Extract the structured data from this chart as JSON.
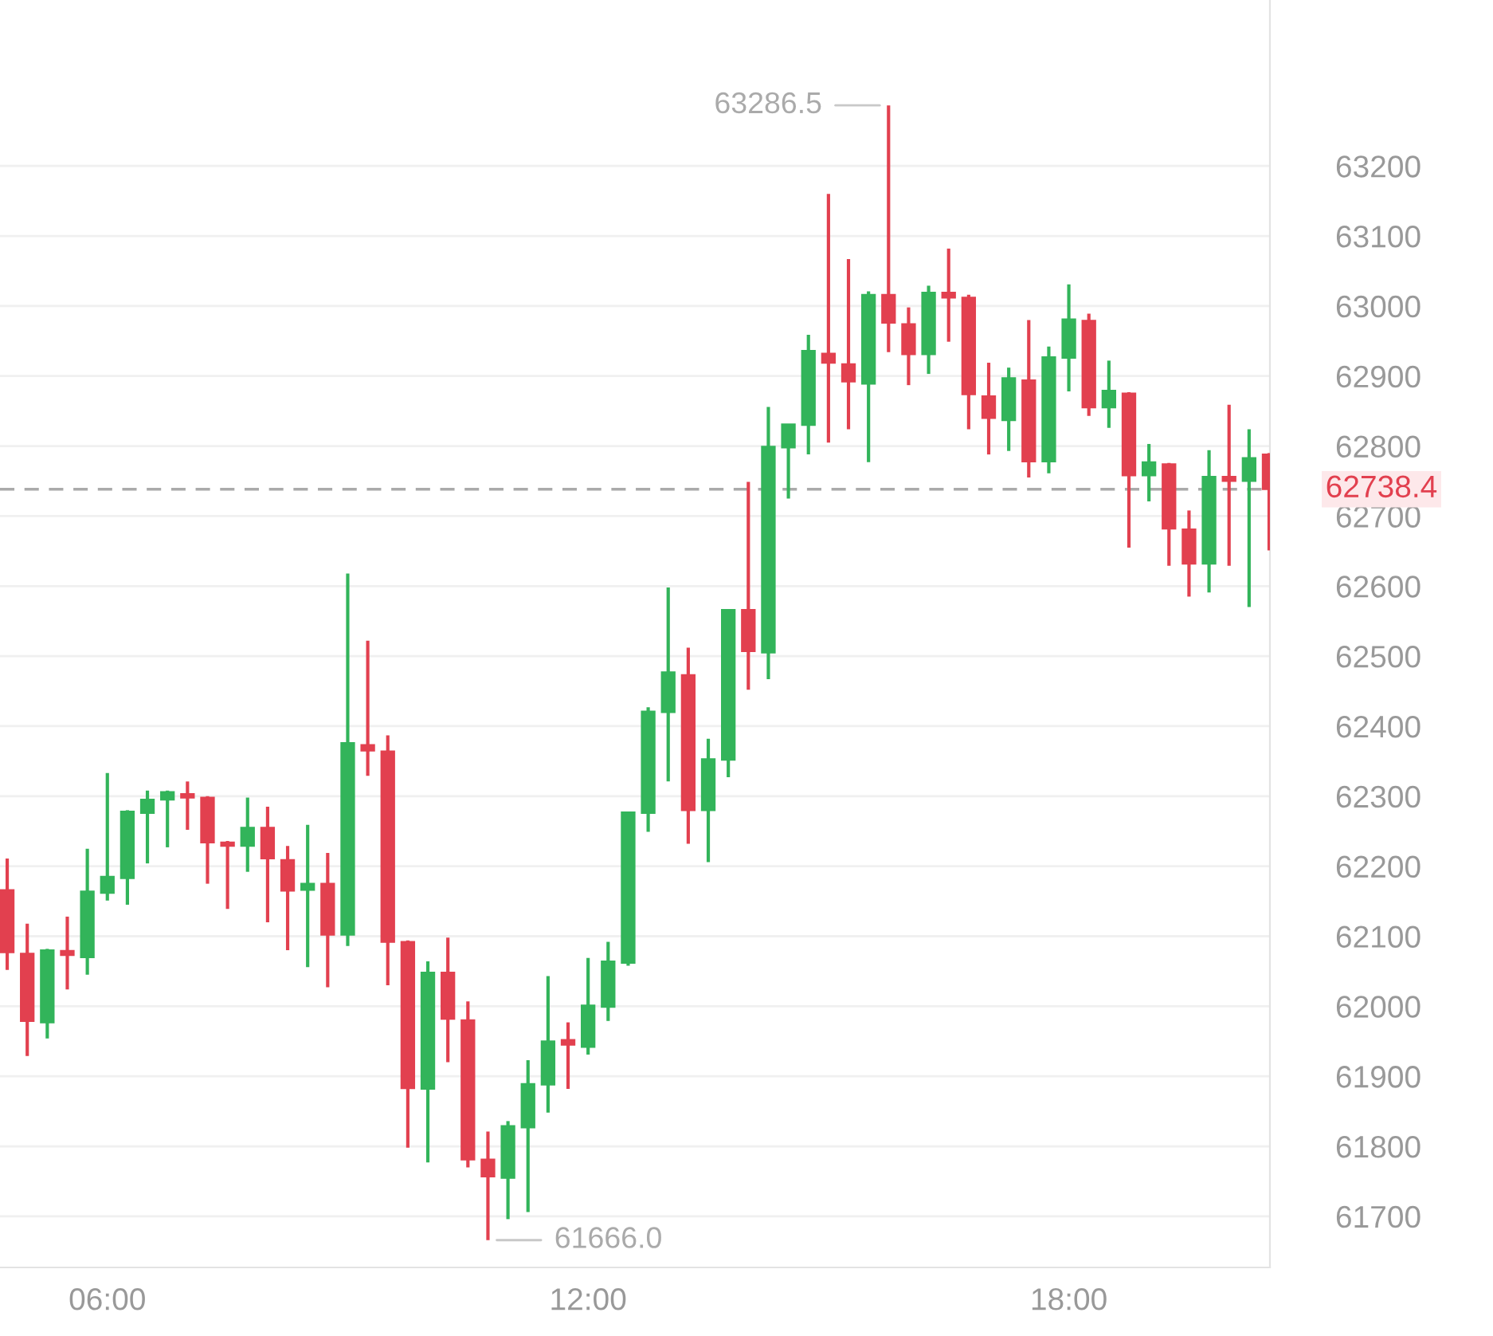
{
  "chart_data": {
    "type": "candlestick",
    "x": [
      4.75,
      5,
      5.25,
      5.5,
      5.75,
      6,
      6.25,
      6.5,
      6.75,
      7,
      7.25,
      7.5,
      7.75,
      8,
      8.25,
      8.5,
      8.75,
      9,
      9.25,
      9.5,
      9.75,
      10,
      10.25,
      10.5,
      10.75,
      11,
      11.25,
      11.5,
      11.75,
      12,
      12.25,
      12.5,
      12.75,
      13,
      13.25,
      13.5,
      13.75,
      14,
      14.25,
      14.5,
      14.75,
      15,
      15.25,
      15.5,
      15.75,
      16,
      16.25,
      16.5,
      16.75,
      17,
      17.25,
      17.5,
      17.75,
      18,
      18.25,
      18.5,
      18.75,
      19,
      19.25,
      19.5,
      19.75,
      20,
      20.25,
      20.5
    ],
    "ohlc": [
      [
        62166,
        62211,
        62052,
        62077
      ],
      [
        62075,
        62118,
        61929,
        61979
      ],
      [
        61977,
        62082,
        61954,
        62080
      ],
      [
        62079,
        62128,
        62024,
        62073
      ],
      [
        62070,
        62225,
        62045,
        62164
      ],
      [
        62162,
        62333,
        62151,
        62185
      ],
      [
        62183,
        62280,
        62145,
        62278
      ],
      [
        62276,
        62308,
        62204,
        62295
      ],
      [
        62295,
        62308,
        62227,
        62306
      ],
      [
        62303,
        62321,
        62252,
        62298
      ],
      [
        62298,
        62300,
        62175,
        62234
      ],
      [
        62234,
        62236,
        62139,
        62229
      ],
      [
        62229,
        62298,
        62192,
        62255
      ],
      [
        62255,
        62285,
        62120,
        62211
      ],
      [
        62209,
        62229,
        62080,
        62165
      ],
      [
        62166,
        62259,
        62056,
        62175
      ],
      [
        62175,
        62219,
        62027,
        62102
      ],
      [
        62102,
        62618,
        62086,
        62376
      ],
      [
        62373,
        62522,
        62329,
        62365
      ],
      [
        62364,
        62387,
        62030,
        62092
      ],
      [
        62092,
        62094,
        61798,
        61883
      ],
      [
        61882,
        62064,
        61777,
        62048
      ],
      [
        62048,
        62098,
        61920,
        61982
      ],
      [
        61980,
        62007,
        61770,
        61781
      ],
      [
        61781,
        61821,
        61666,
        61757
      ],
      [
        61755,
        61836,
        61696,
        61829
      ],
      [
        61827,
        61923,
        61706,
        61889
      ],
      [
        61888,
        62043,
        61848,
        61950
      ],
      [
        61952,
        61977,
        61882,
        61945
      ],
      [
        61942,
        62069,
        61931,
        62001
      ],
      [
        61999,
        62092,
        61979,
        62064
      ],
      [
        62062,
        62277,
        62058,
        62277
      ],
      [
        62276,
        62427,
        62249,
        62421
      ],
      [
        62420,
        62598,
        62321,
        62477
      ],
      [
        62473,
        62512,
        62232,
        62280
      ],
      [
        62280,
        62382,
        62206,
        62353
      ],
      [
        62352,
        62566,
        62327,
        62566
      ],
      [
        62566,
        62749,
        62452,
        62507
      ],
      [
        62505,
        62856,
        62467,
        62799
      ],
      [
        62798,
        62831,
        62725,
        62831
      ],
      [
        62830,
        62959,
        62788,
        62936
      ],
      [
        62932,
        63160,
        62805,
        62919
      ],
      [
        62917,
        63067,
        62824,
        62892
      ],
      [
        62889,
        63021,
        62777,
        63016
      ],
      [
        63016,
        63286.5,
        62934,
        62976
      ],
      [
        62974,
        62998,
        62887,
        62931
      ],
      [
        62931,
        63029,
        62903,
        63019
      ],
      [
        63019,
        63082,
        62949,
        63012
      ],
      [
        63012,
        63016,
        62824,
        62874
      ],
      [
        62871,
        62919,
        62788,
        62840
      ],
      [
        62837,
        62912,
        62793,
        62897
      ],
      [
        62894,
        62980,
        62755,
        62778
      ],
      [
        62778,
        62942,
        62761,
        62927
      ],
      [
        62926,
        63031,
        62878,
        62981
      ],
      [
        62979,
        62989,
        62843,
        62855
      ],
      [
        62855,
        62922,
        62826,
        62879
      ],
      [
        62875,
        62877,
        62655,
        62758
      ],
      [
        62758,
        62803,
        62721,
        62777
      ],
      [
        62774,
        62776,
        62629,
        62682
      ],
      [
        62681,
        62708,
        62585,
        62632
      ],
      [
        62632,
        62794,
        62591,
        62756
      ],
      [
        62756,
        62859,
        62629,
        62750
      ],
      [
        62750,
        62824,
        62570,
        62783
      ],
      [
        62788,
        62790,
        62651,
        62738.4
      ]
    ],
    "colors": [
      "#e2404f",
      "#e2404f",
      "#32b45a",
      "#e2404f",
      "#32b45a",
      "#32b45a",
      "#32b45a",
      "#32b45a",
      "#32b45a",
      "#e2404f",
      "#e2404f",
      "#e2404f",
      "#32b45a",
      "#e2404f",
      "#e2404f",
      "#32b45a",
      "#e2404f",
      "#32b45a",
      "#e2404f",
      "#e2404f",
      "#e2404f",
      "#32b45a",
      "#e2404f",
      "#e2404f",
      "#e2404f",
      "#32b45a",
      "#32b45a",
      "#32b45a",
      "#e2404f",
      "#32b45a",
      "#32b45a",
      "#32b45a",
      "#32b45a",
      "#32b45a",
      "#e2404f",
      "#32b45a",
      "#32b45a",
      "#e2404f",
      "#32b45a",
      "#32b45a",
      "#32b45a",
      "#e2404f",
      "#e2404f",
      "#32b45a",
      "#e2404f",
      "#e2404f",
      "#32b45a",
      "#e2404f",
      "#e2404f",
      "#e2404f",
      "#32b45a",
      "#e2404f",
      "#32b45a",
      "#32b45a",
      "#e2404f",
      "#32b45a",
      "#e2404f",
      "#32b45a",
      "#e2404f",
      "#e2404f",
      "#32b45a",
      "#e2404f",
      "#32b45a",
      "#e2404f"
    ],
    "xlim": [
      4.66,
      20.51
    ],
    "xticks": [
      {
        "value": 6,
        "label": "06:00"
      },
      {
        "value": 12,
        "label": "12:00"
      },
      {
        "value": 18,
        "label": "18:00"
      }
    ],
    "ylim": [
      61627,
      63437
    ],
    "yticks": [
      61700,
      61800,
      61900,
      62000,
      62100,
      62200,
      62300,
      62400,
      62500,
      62600,
      62700,
      62800,
      62900,
      63000,
      63100,
      63200
    ],
    "grid": "y",
    "ref_lines": [
      {
        "axis": "y",
        "value": 62738.4,
        "label": "62738.4",
        "color": "#aaaaaa",
        "line_style": "dashed"
      }
    ],
    "annotations": [
      {
        "text": "63286.5",
        "x": 15.75,
        "y": 63286.5
      },
      {
        "text": "61666.0",
        "x": 10.75,
        "y": 61666
      }
    ]
  }
}
